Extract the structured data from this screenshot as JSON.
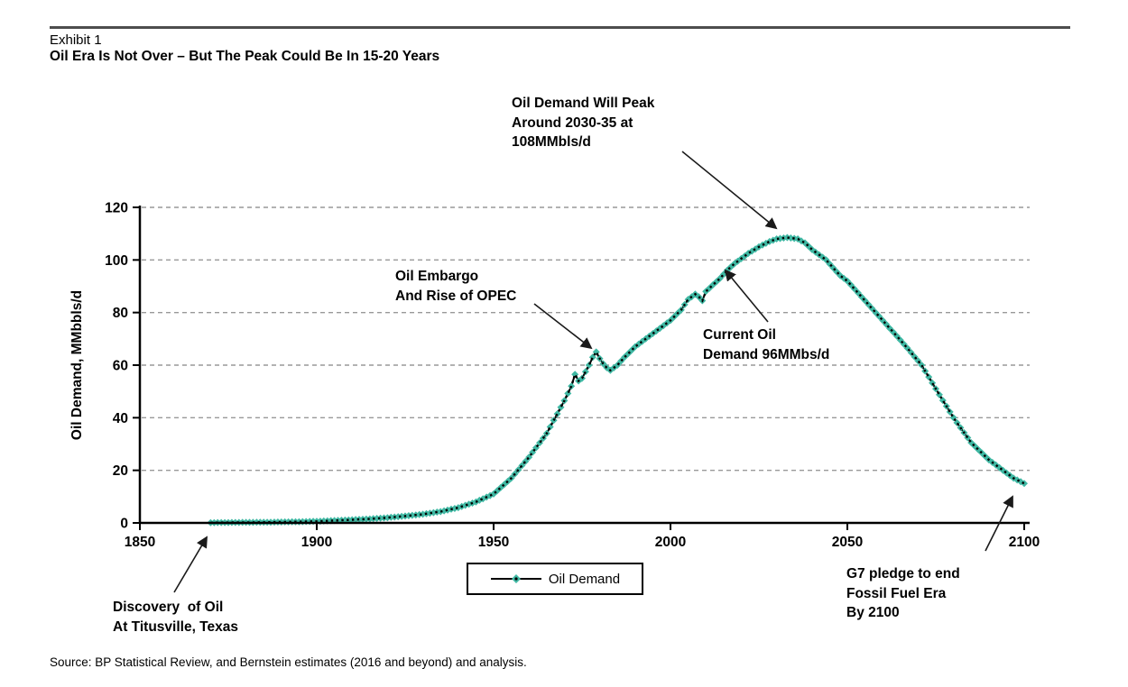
{
  "page": {
    "exhibit_label": "Exhibit 1",
    "title": "Oil Era Is Not Over – But The Peak Could Be In 15-20 Years",
    "source": "Source: BP Statistical Review, and Bernstein estimates (2016 and beyond) and analysis."
  },
  "colors": {
    "series_line": "#000000",
    "series_marker": "#3FB8A3",
    "grid": "#999999",
    "axis": "#000000",
    "arrow": "#1a1a1a",
    "top_rule": "#4d4d4d",
    "page_border": "#b3b3b3"
  },
  "chart_data": {
    "type": "line",
    "title": "",
    "xlabel": "",
    "ylabel": "Oil Demand, MMbbls/d",
    "xlim": [
      1850,
      2100
    ],
    "ylim": [
      0,
      120
    ],
    "xticks": [
      1850,
      1900,
      1950,
      2000,
      2050,
      2100
    ],
    "yticks": [
      0,
      20,
      40,
      60,
      80,
      100,
      120
    ],
    "grid": "horizontal-dashed",
    "legend": {
      "position": "bottom-center",
      "entries": [
        "Oil Demand"
      ]
    },
    "series": [
      {
        "name": "Oil Demand",
        "marker": "diamond",
        "marker_color": "#3FB8A3",
        "line_color": "#000000",
        "points": [
          [
            1870,
            0.1
          ],
          [
            1875,
            0.15
          ],
          [
            1880,
            0.2
          ],
          [
            1885,
            0.25
          ],
          [
            1890,
            0.35
          ],
          [
            1895,
            0.45
          ],
          [
            1900,
            0.6
          ],
          [
            1905,
            0.9
          ],
          [
            1910,
            1.2
          ],
          [
            1915,
            1.5
          ],
          [
            1920,
            2
          ],
          [
            1925,
            2.6
          ],
          [
            1930,
            3.3
          ],
          [
            1935,
            4.3
          ],
          [
            1940,
            5.8
          ],
          [
            1945,
            8
          ],
          [
            1950,
            11
          ],
          [
            1955,
            17
          ],
          [
            1960,
            25
          ],
          [
            1965,
            34
          ],
          [
            1970,
            46.5
          ],
          [
            1972,
            52
          ],
          [
            1973,
            56.5
          ],
          [
            1974,
            54
          ],
          [
            1975,
            55
          ],
          [
            1976,
            57.5
          ],
          [
            1977,
            60
          ],
          [
            1978,
            63
          ],
          [
            1979,
            65
          ],
          [
            1980,
            62.5
          ],
          [
            1981,
            60.5
          ],
          [
            1982,
            59
          ],
          [
            1983,
            58
          ],
          [
            1984,
            59
          ],
          [
            1985,
            60
          ],
          [
            1987,
            63
          ],
          [
            1990,
            67
          ],
          [
            1995,
            72
          ],
          [
            2000,
            77
          ],
          [
            2003,
            81
          ],
          [
            2005,
            85
          ],
          [
            2007,
            87
          ],
          [
            2008,
            86
          ],
          [
            2009,
            84.5
          ],
          [
            2010,
            88
          ],
          [
            2012,
            90.5
          ],
          [
            2014,
            93
          ],
          [
            2016,
            96
          ],
          [
            2018,
            98.5
          ],
          [
            2020,
            100.5
          ],
          [
            2022,
            102.5
          ],
          [
            2025,
            105
          ],
          [
            2028,
            107
          ],
          [
            2030,
            108
          ],
          [
            2033,
            108.5
          ],
          [
            2036,
            108
          ],
          [
            2038,
            106.5
          ],
          [
            2040,
            104
          ],
          [
            2044,
            100
          ],
          [
            2048,
            94
          ],
          [
            2050,
            92
          ],
          [
            2054,
            86
          ],
          [
            2058,
            80
          ],
          [
            2062,
            74
          ],
          [
            2066,
            68
          ],
          [
            2071,
            60
          ],
          [
            2075,
            51
          ],
          [
            2080,
            40
          ],
          [
            2085,
            30.5
          ],
          [
            2090,
            24
          ],
          [
            2094,
            20
          ],
          [
            2097,
            17
          ],
          [
            2100,
            15
          ]
        ]
      }
    ],
    "annotations": [
      {
        "id": "peak",
        "text": "Oil Demand Will Peak\nAround 2030-35 at\n108MMbls/d"
      },
      {
        "id": "embargo",
        "text": "Oil Embargo\nAnd Rise of OPEC"
      },
      {
        "id": "current",
        "text": "Current Oil\nDemand 96MMbs/d"
      },
      {
        "id": "discovery",
        "text": "Discovery  of Oil\nAt Titusville, Texas"
      },
      {
        "id": "g7",
        "text": "G7 pledge to end\nFossil Fuel Era\nBy 2100"
      }
    ]
  }
}
